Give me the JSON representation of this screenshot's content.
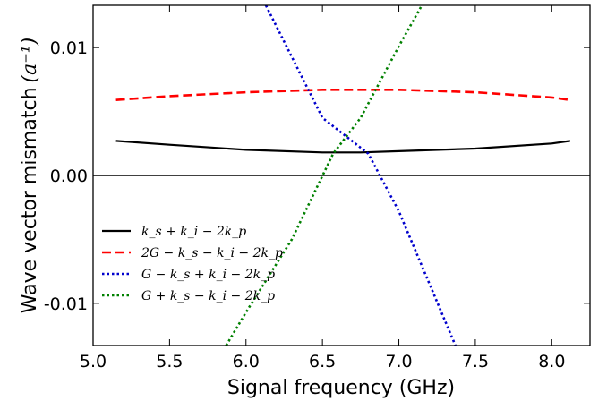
{
  "chart_data": {
    "type": "line",
    "title": "",
    "xlabel": "Signal frequency (GHz)",
    "ylabel": "Wave vector mismatch (a⁻¹)",
    "ylabel_main": "Wave vector mismatch",
    "ylabel_unit": "(a⁻¹)",
    "xlim": [
      5.0,
      8.25
    ],
    "ylim": [
      -0.0133,
      0.0133
    ],
    "xticks": [
      5.0,
      5.5,
      6.0,
      6.5,
      7.0,
      7.5,
      8.0
    ],
    "xtick_labels": [
      "5.0",
      "5.5",
      "6.0",
      "6.5",
      "7.0",
      "7.5",
      "8.0"
    ],
    "yticks": [
      -0.01,
      0.0,
      0.01
    ],
    "ytick_labels": [
      "-0.01",
      "0.00",
      "0.01"
    ],
    "zero_line": true,
    "grid": false,
    "legend_position": "lower-left",
    "series": [
      {
        "name": "k_s + k_i − 2k_p",
        "color": "#000000",
        "style": "solid",
        "x": [
          5.15,
          5.5,
          6.0,
          6.5,
          6.75,
          7.0,
          7.5,
          8.0,
          8.12
        ],
        "y": [
          0.0027,
          0.0024,
          0.002,
          0.0018,
          0.0018,
          0.0019,
          0.0021,
          0.0025,
          0.0027
        ]
      },
      {
        "name": "2G − k_s − k_i − 2k_p",
        "color": "#ff0000",
        "style": "dashed",
        "x": [
          5.15,
          5.5,
          6.0,
          6.5,
          6.75,
          7.0,
          7.5,
          8.0,
          8.12
        ],
        "y": [
          0.0059,
          0.0062,
          0.0065,
          0.0067,
          0.0067,
          0.0067,
          0.0065,
          0.0061,
          0.0059
        ]
      },
      {
        "name": "G − k_s + k_i − 2k_p",
        "color": "#0000cc",
        "style": "dotted",
        "x": [
          6.13,
          6.5,
          6.8,
          7.0,
          7.37
        ],
        "y": [
          0.0133,
          0.0045,
          0.0017,
          -0.0028,
          -0.0133
        ]
      },
      {
        "name": "G + k_s − k_i − 2k_p",
        "color": "#008000",
        "style": "dotted",
        "x": [
          5.87,
          6.0,
          6.3,
          6.57,
          6.75,
          7.0,
          7.15
        ],
        "y": [
          -0.0133,
          -0.0107,
          -0.005,
          0.0017,
          0.0045,
          0.0101,
          0.0133
        ]
      }
    ]
  }
}
